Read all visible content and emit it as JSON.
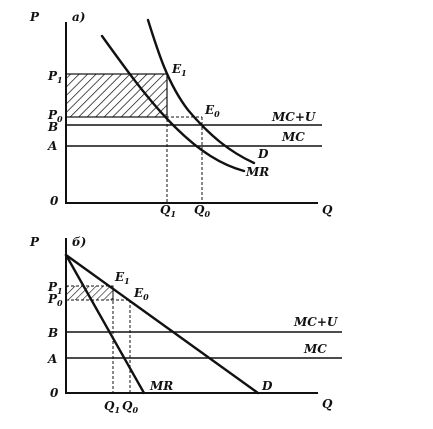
{
  "diagram_a": {
    "panel_label": "а)",
    "axis_y": "P",
    "axis_x": "Q",
    "origin": "0",
    "y_labels": {
      "p1": "P",
      "p1_sub": "1",
      "p0": "P",
      "p0_sub": "0",
      "b": "B",
      "a": "A"
    },
    "x_labels": {
      "q1": "Q",
      "q1_sub": "1",
      "q0": "Q",
      "q0_sub": "0"
    },
    "points": {
      "e1": "E",
      "e1_sub": "1",
      "e0": "E",
      "e0_sub": "0"
    },
    "curves": {
      "demand": "D",
      "marginal_revenue": "MR"
    },
    "lines": {
      "mc_u": "MC+U",
      "mc": "MC"
    }
  },
  "diagram_b": {
    "panel_label": "б)",
    "axis_y": "P",
    "axis_x": "Q",
    "origin": "0",
    "y_labels": {
      "p1": "P",
      "p1_sub": "1",
      "p0": "P",
      "p0_sub": "0",
      "b": "B",
      "a": "A"
    },
    "x_labels": {
      "q1": "Q",
      "q1_sub": "1",
      "q0": "Q",
      "q0_sub": "0"
    },
    "points": {
      "e1": "E",
      "e1_sub": "1",
      "e0": "E",
      "e0_sub": "0"
    },
    "curves": {
      "demand": "D",
      "marginal_revenue": "MR"
    },
    "lines": {
      "mc_u": "MC+U",
      "mc": "MC"
    }
  }
}
